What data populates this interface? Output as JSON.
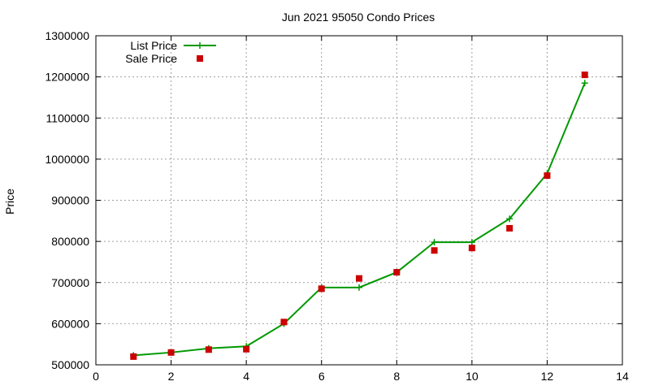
{
  "chart_data": {
    "type": "line",
    "title": "Jun 2021 95050 Condo Prices",
    "xlabel": "",
    "ylabel": "Price",
    "xlim": [
      0,
      14
    ],
    "ylim": [
      500000,
      1300000
    ],
    "x_ticks": [
      0,
      2,
      4,
      6,
      8,
      10,
      12,
      14
    ],
    "y_ticks": [
      500000,
      600000,
      700000,
      800000,
      900000,
      1000000,
      1100000,
      1200000,
      1300000
    ],
    "grid": true,
    "legend_position": "top-left",
    "series": [
      {
        "name": "List Price",
        "style": "line+points",
        "marker": "plus",
        "color": "#009900",
        "x": [
          1,
          2,
          3,
          4,
          5,
          6,
          7,
          8,
          9,
          10,
          11,
          12,
          13
        ],
        "y": [
          523000,
          530000,
          540000,
          545000,
          600000,
          688000,
          688000,
          725000,
          798000,
          798000,
          855000,
          965000,
          1185000
        ]
      },
      {
        "name": "Sale Price",
        "style": "points",
        "marker": "square",
        "color": "#cc0000",
        "x": [
          1,
          2,
          3,
          4,
          5,
          6,
          7,
          8,
          9,
          10,
          11,
          12,
          13
        ],
        "y": [
          520000,
          530000,
          537000,
          538000,
          604000,
          685000,
          710000,
          725000,
          778000,
          784000,
          832000,
          960000,
          1205000
        ]
      }
    ]
  }
}
